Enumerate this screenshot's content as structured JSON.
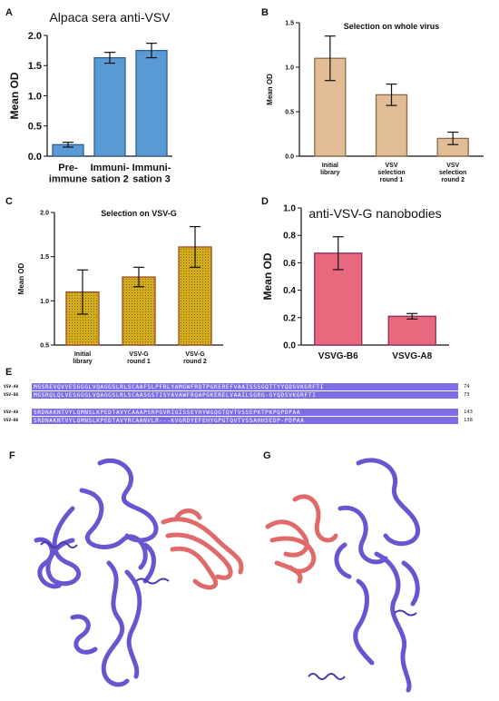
{
  "panels": {
    "A": "A",
    "B": "B",
    "C": "C",
    "D": "D",
    "E": "E",
    "F": "F",
    "G": "G"
  },
  "colors": {
    "A": {
      "fill": "#5b9bd5",
      "stroke": "#2e5f8a"
    },
    "B": {
      "fill": "#e2bc95",
      "stroke": "#8a6a48"
    },
    "C": {
      "fill": "#d4ad1c",
      "stroke": "#a54a2a"
    },
    "D": {
      "fill": "#e8687e",
      "stroke": "#8a2a60"
    },
    "protein_main": "#6a55d0",
    "protein_nb": "#e06a6a",
    "alignment": "#7d6ee6"
  },
  "chart_data": [
    {
      "id": "A",
      "type": "bar",
      "title": "Alpaca sera anti-VSV",
      "ylabel": "Mean OD",
      "xlabel": "",
      "categories": [
        "Pre-\nimmune",
        "Immuni-\nsation 2",
        "Immuni-\nsation 3"
      ],
      "values": [
        0.19,
        1.63,
        1.75
      ],
      "errors": [
        0.04,
        0.09,
        0.12
      ],
      "ylim": [
        0,
        2.0
      ],
      "yticks": [
        "0.0",
        "0.5",
        "1.0",
        "1.5",
        "2.0"
      ],
      "grid": false
    },
    {
      "id": "B",
      "type": "bar",
      "title": "Selection on whole virus",
      "ylabel": "Mean OD",
      "xlabel": "",
      "categories": [
        "Initial\nlibrary",
        "VSV\nselection\nround 1",
        "VSV\nselection\nround 2"
      ],
      "values": [
        1.1,
        0.69,
        0.2
      ],
      "errors": [
        0.25,
        0.12,
        0.07
      ],
      "ylim": [
        0,
        1.5
      ],
      "yticks": [
        "0.0",
        "0.5",
        "1.0",
        "1.5"
      ],
      "grid": false
    },
    {
      "id": "C",
      "type": "bar",
      "title": "Selection on VSV-G",
      "ylabel": "Mean OD",
      "xlabel": "",
      "categories": [
        "Initial\nlibrary",
        "VSV-G\nround 1",
        "VSV-G\nround 2"
      ],
      "values": [
        1.1,
        1.27,
        1.61
      ],
      "errors": [
        0.25,
        0.11,
        0.23
      ],
      "ylim": [
        0.5,
        2.0
      ],
      "yticks": [
        "0.5",
        "1.0",
        "1.5",
        "2.0"
      ],
      "grid": false
    },
    {
      "id": "D",
      "type": "bar",
      "title": "anti-VSV-G nanobodies",
      "ylabel": "Mean OD",
      "xlabel": "",
      "categories": [
        "VSVG-B6",
        "VSVG-A8"
      ],
      "values": [
        0.67,
        0.21
      ],
      "errors": [
        0.12,
        0.02
      ],
      "ylim": [
        0,
        1.0
      ],
      "yticks": [
        "0.0",
        "0.2",
        "0.4",
        "0.6",
        "0.8",
        "1.0"
      ],
      "grid": false
    }
  ],
  "alignment": {
    "block1": [
      {
        "name": "VSV-A8",
        "seq": "MGSREVQVVESGGGLVQAGGSLRLSCAAFSLPFRLYAMGWFRQTPGKEREFVAAISSSGQTTYYQDSVKGRFTI",
        "end": "74"
      },
      {
        "name": "VSV-B6",
        "seq": "MGSRQLQLVESGGGLVQAGGSLRLSCAASGSTISYAVAWFRQAPGKERELVAAILSGRG-GYQDSVKGRFTI",
        "end": "73"
      }
    ],
    "block2": [
      {
        "name": "VSV-A8",
        "seq": "SRDNAKNTVYLQMNSLKPEDTAVYCAAAPSRPGVRIGISSEYHYWGQGTQVTVSSEPKTPKPQPDPAA",
        "end": "143"
      },
      {
        "name": "VSV-B6",
        "seq": "SRDNAKNTVYLQMNSLKPEDTAVYRCAANVLR---KVGRDYEFEHYGPGTQVTVSSAHHSEDP-PDPAA",
        "end": "138"
      }
    ]
  }
}
